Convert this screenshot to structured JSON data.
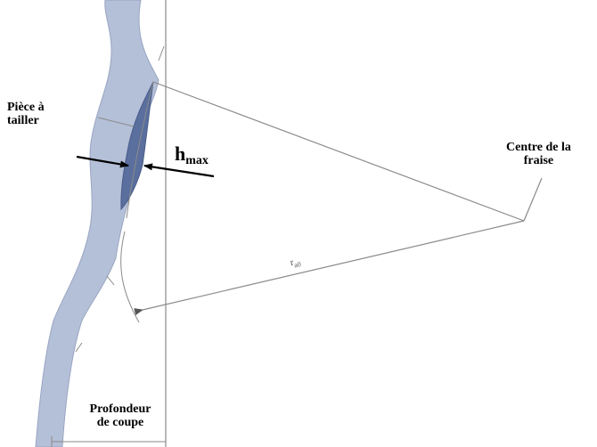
{
  "labels": {
    "workpiece": [
      "Pièce à",
      "tailler"
    ],
    "chip_thickness": "h",
    "chip_thickness_sub": "max",
    "cutter_centre": [
      "Centre de la",
      "fraise"
    ],
    "radius": "r",
    "radius_sub": "a0",
    "cut_depth": [
      "Profondeur",
      "de coupe"
    ]
  },
  "colors": {
    "workpiece_fill": "#b4bfd8",
    "chip_fill": "#5a6f9e",
    "line": "#8a8a8a",
    "arrow": "#000000"
  }
}
